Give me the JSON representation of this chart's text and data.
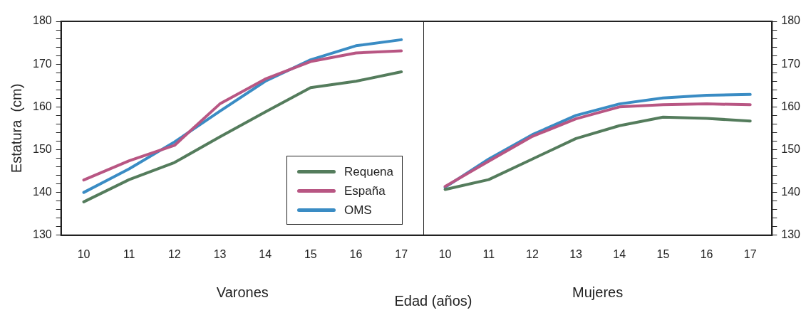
{
  "chart_data": [
    {
      "type": "line",
      "ylabel": "Estatura  (cm)",
      "xlabel": "Varones",
      "annotations": [
        "Edad  (años)"
      ],
      "categories": [
        "10",
        "11",
        "12",
        "13",
        "14",
        "15",
        "16",
        "17"
      ],
      "legend": "bottom right",
      "grid": false,
      "marker": "none",
      "line_style": "solid",
      "ylim": [
        130,
        180
      ],
      "yticks": [
        130,
        {
          "value": 132,
          "label": null
        },
        {
          "value": 134,
          "label": null
        },
        {
          "value": 136,
          "label": null
        },
        {
          "value": 138,
          "label": null
        },
        140,
        {
          "value": 142,
          "label": null
        },
        {
          "value": 144,
          "label": null
        },
        {
          "value": 146,
          "label": null
        },
        {
          "value": 148,
          "label": null
        },
        150,
        {
          "value": 152,
          "label": null
        },
        {
          "value": 154,
          "label": null
        },
        {
          "value": 156,
          "label": null
        },
        {
          "value": 158,
          "label": null
        },
        160,
        {
          "value": 162,
          "label": null
        },
        {
          "value": 164,
          "label": null
        },
        {
          "value": 166,
          "label": null
        },
        {
          "value": 168,
          "label": null
        },
        170,
        {
          "value": 172,
          "label": null
        },
        {
          "value": 174,
          "label": null
        },
        {
          "value": 176,
          "label": null
        },
        {
          "value": 178,
          "label": null
        },
        180
      ],
      "series": [
        {
          "name": "Requena",
          "color": "#547c5c",
          "values": [
            137.8,
            143,
            147,
            153,
            158.8,
            164.5,
            166,
            168.2
          ]
        },
        {
          "name": "España",
          "color": "#b85683",
          "values": [
            142.9,
            147.4,
            151,
            160.7,
            166.5,
            170.6,
            172.6,
            173.1
          ]
        },
        {
          "name": "OMS",
          "color": "#3a8cc4",
          "values": [
            140,
            145.5,
            151.8,
            159,
            166,
            171,
            174.3,
            175.7
          ]
        }
      ]
    },
    {
      "type": "line",
      "xlabel": "Mujeres",
      "categories": [
        "10",
        "11",
        "12",
        "13",
        "14",
        "15",
        "16",
        "17"
      ],
      "grid": false,
      "marker": "none",
      "line_style": "solid",
      "ylim": [
        130,
        180
      ],
      "yticks": [
        130,
        {
          "value": 132,
          "label": null
        },
        {
          "value": 134,
          "label": null
        },
        {
          "value": 136,
          "label": null
        },
        {
          "value": 138,
          "label": null
        },
        140,
        {
          "value": 142,
          "label": null
        },
        {
          "value": 144,
          "label": null
        },
        {
          "value": 146,
          "label": null
        },
        {
          "value": 148,
          "label": null
        },
        150,
        {
          "value": 152,
          "label": null
        },
        {
          "value": 154,
          "label": null
        },
        {
          "value": 156,
          "label": null
        },
        {
          "value": 158,
          "label": null
        },
        160,
        {
          "value": 162,
          "label": null
        },
        {
          "value": 164,
          "label": null
        },
        {
          "value": 166,
          "label": null
        },
        {
          "value": 168,
          "label": null
        },
        170,
        {
          "value": 172,
          "label": null
        },
        {
          "value": 174,
          "label": null
        },
        {
          "value": 176,
          "label": null
        },
        {
          "value": 178,
          "label": null
        },
        180
      ],
      "series": [
        {
          "color": "#547c5c",
          "values": [
            140.7,
            143,
            147.8,
            152.6,
            155.6,
            157.6,
            157.3,
            156.7
          ]
        },
        {
          "color": "#b85683",
          "values": [
            141.4,
            147.3,
            153.1,
            157.2,
            160,
            160.5,
            160.7,
            160.5
          ]
        },
        {
          "color": "#3a8cc4",
          "values": [
            141.2,
            147.8,
            153.5,
            158,
            160.7,
            162.1,
            162.7,
            162.9
          ]
        }
      ]
    }
  ]
}
